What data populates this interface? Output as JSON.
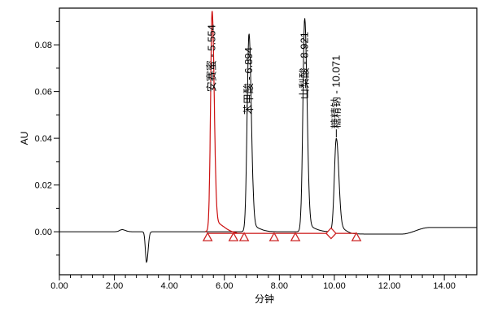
{
  "window": {
    "background": "#ffffff"
  },
  "chart_data": {
    "type": "line",
    "subtype": "hplc-chromatogram",
    "title": "",
    "xlabel": "分钟",
    "ylabel": "AU",
    "xlim": [
      0,
      15.18
    ],
    "ylim": [
      -0.0184,
      0.0957
    ],
    "x_major_ticks": [
      {
        "value": 0,
        "label": "0.00"
      },
      {
        "value": 2,
        "label": "2.00"
      },
      {
        "value": 4,
        "label": "4.00"
      },
      {
        "value": 6,
        "label": "6.00"
      },
      {
        "value": 8,
        "label": "8.00"
      },
      {
        "value": 10,
        "label": "10.00"
      },
      {
        "value": 12,
        "label": "12.00"
      },
      {
        "value": 14,
        "label": "14.00"
      }
    ],
    "x_minor_step": 0.4,
    "y_major_ticks": [
      {
        "value": 0.0,
        "label": "0.00"
      },
      {
        "value": 0.02,
        "label": "0.02"
      },
      {
        "value": 0.04,
        "label": "0.04"
      },
      {
        "value": 0.06,
        "label": "0.06"
      },
      {
        "value": 0.08,
        "label": "0.08"
      }
    ],
    "y_minor_values": [
      -0.01,
      0.01,
      0.03,
      0.05,
      0.07,
      0.09
    ],
    "grid": "off",
    "colors": {
      "trace_black": "#000000",
      "trace_red": "#cc1111",
      "marker_red": "#cc2222",
      "label_text": "#000000"
    },
    "peaks": [
      {
        "compound": "安赛蜜",
        "retention_time_min": 5.554,
        "label": "安赛蜜 - 5.554",
        "apex_au": 0.0946,
        "trace": "red",
        "sigma_left": 0.055,
        "sigma_right": 0.075,
        "tail_au": 0.005,
        "tail_sigma": 0.35,
        "label_mode": "overlap"
      },
      {
        "compound": "苯甲酸",
        "retention_time_min": 6.894,
        "label": "苯甲酸 - 6.894",
        "apex_au": 0.0849,
        "trace": "black",
        "sigma_left": 0.065,
        "sigma_right": 0.085,
        "tail_au": 0.0025,
        "tail_sigma": 0.3,
        "label_mode": "overlap"
      },
      {
        "compound": "山梨酸",
        "retention_time_min": 8.921,
        "label": "山梨酸 - 8.921",
        "apex_au": 0.0915,
        "trace": "black",
        "sigma_left": 0.065,
        "sigma_right": 0.085,
        "tail_au": 0.0025,
        "tail_sigma": 0.3,
        "label_mode": "overlap"
      },
      {
        "compound": "糖精钠",
        "retention_time_min": 10.071,
        "label": "糖精钠 - 10.071",
        "apex_au": 0.04,
        "trace": "black",
        "sigma_left": 0.07,
        "sigma_right": 0.09,
        "tail_au": 0.0015,
        "tail_sigma": 0.3,
        "label_mode": "above"
      }
    ],
    "baseline_events": [
      {
        "type": "bump",
        "time_min": 2.28,
        "amplitude_au": 0.0009,
        "sigma_left": 0.09,
        "sigma_right": 0.12
      },
      {
        "type": "dip",
        "time_min": 3.17,
        "amplitude_au": -0.0131,
        "sigma_left": 0.042,
        "sigma_right": 0.055
      }
    ],
    "baseline_drift": {
      "post_peaks_offset_au": -0.001,
      "offset_start_min": 10.25,
      "offset_end_min": 10.65,
      "end_rise_au": 0.0028,
      "rise_start_min": 12.45,
      "rise_end_min": 13.45
    },
    "integration": {
      "baseline": {
        "start_min": 5.39,
        "end_min": 10.8,
        "level_au": -0.0007
      },
      "markers": [
        {
          "shape": "triangle",
          "time_min": 5.39
        },
        {
          "shape": "triangle",
          "time_min": 6.33
        },
        {
          "shape": "triangle",
          "time_min": 6.72
        },
        {
          "shape": "triangle",
          "time_min": 7.81
        },
        {
          "shape": "triangle",
          "time_min": 8.58
        },
        {
          "shape": "diamond",
          "time_min": 9.88
        },
        {
          "shape": "triangle",
          "time_min": 10.8
        }
      ]
    }
  }
}
